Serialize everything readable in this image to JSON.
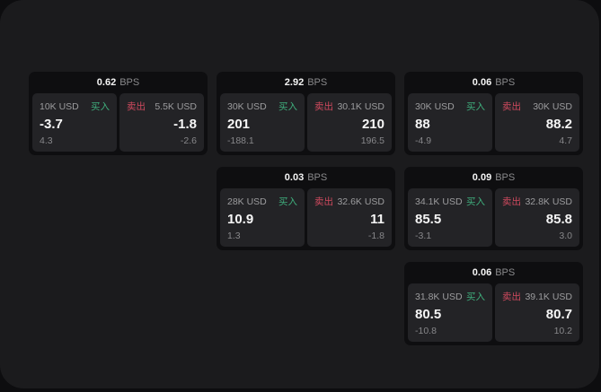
{
  "labels": {
    "bps": "BPS",
    "buy": "买入",
    "sell": "卖出"
  },
  "colors": {
    "buy_green": "#3fae7c",
    "sell_red": "#cf4a5e",
    "panel_bg": "#232326",
    "card_bg": "#0e0e10",
    "app_bg": "#1b1b1d"
  },
  "cards": [
    {
      "bps": "0.62",
      "buy": {
        "amount": "10K USD",
        "value": "-3.7",
        "sub": "4.3"
      },
      "sell": {
        "amount": "5.5K USD",
        "value": "-1.8",
        "sub": "-2.6"
      }
    },
    {
      "bps": "2.92",
      "buy": {
        "amount": "30K USD",
        "value": "201",
        "sub": "-188.1"
      },
      "sell": {
        "amount": "30.1K USD",
        "value": "210",
        "sub": "196.5"
      }
    },
    {
      "bps": "0.06",
      "buy": {
        "amount": "30K USD",
        "value": "88",
        "sub": "-4.9"
      },
      "sell": {
        "amount": "30K USD",
        "value": "88.2",
        "sub": "4.7"
      }
    },
    {
      "bps": "0.03",
      "buy": {
        "amount": "28K USD",
        "value": "10.9",
        "sub": "1.3"
      },
      "sell": {
        "amount": "32.6K USD",
        "value": "11",
        "sub": "-1.8"
      }
    },
    {
      "bps": "0.09",
      "buy": {
        "amount": "34.1K USD",
        "value": "85.5",
        "sub": "-3.1"
      },
      "sell": {
        "amount": "32.8K USD",
        "value": "85.8",
        "sub": "3.0"
      }
    },
    {
      "bps": "0.06",
      "buy": {
        "amount": "31.8K USD",
        "value": "80.5",
        "sub": "-10.8"
      },
      "sell": {
        "amount": "39.1K USD",
        "value": "80.7",
        "sub": "10.2"
      }
    }
  ]
}
